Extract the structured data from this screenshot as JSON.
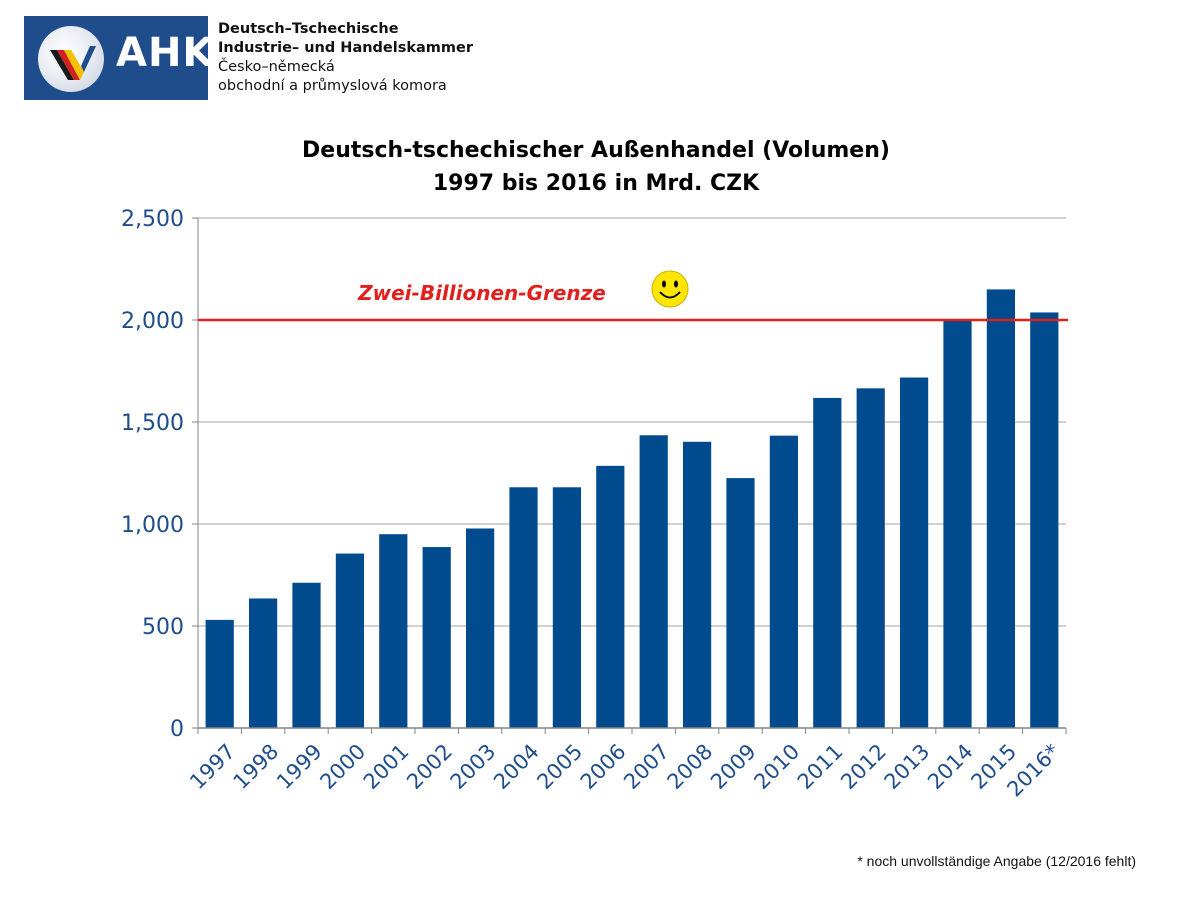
{
  "logo": {
    "brand": "AHK",
    "line1": "Deutsch–Tschechische",
    "line2": "Industrie– und Handelskammer",
    "line3": "Česko–německá",
    "line4": "obchodní a průmyslová komora"
  },
  "chart_data": {
    "type": "bar",
    "title_line1": "Deutsch-tschechischer Außenhandel (Volumen)",
    "title_line2": "1997 bis 2016 in Mrd. CZK",
    "categories": [
      "1997",
      "1998",
      "1999",
      "2000",
      "2001",
      "2002",
      "2003",
      "2004",
      "2005",
      "2006",
      "2007",
      "2008",
      "2009",
      "2010",
      "2011",
      "2012",
      "2013",
      "2014",
      "2015",
      "2016*"
    ],
    "values": [
      530,
      635,
      712,
      855,
      950,
      887,
      978,
      1180,
      1180,
      1285,
      1435,
      1403,
      1225,
      1433,
      1618,
      1665,
      1718,
      2000,
      2150,
      2037
    ],
    "ylim": [
      0,
      2500
    ],
    "yticks": [
      0,
      500,
      1000,
      1500,
      2000,
      2500
    ],
    "ytick_labels": [
      "0",
      "500",
      "1,000",
      "1,500",
      "2,000",
      "2,500"
    ],
    "grid": true,
    "bar_color": "#004b8d",
    "reference_line": {
      "value": 2000,
      "label": "Zwei-Billionen-Grenze",
      "color": "#e0201c"
    },
    "annotation_icon": "smiley-face-icon"
  },
  "footnote": "* noch unvollständige Angabe (12/2016 fehlt)"
}
